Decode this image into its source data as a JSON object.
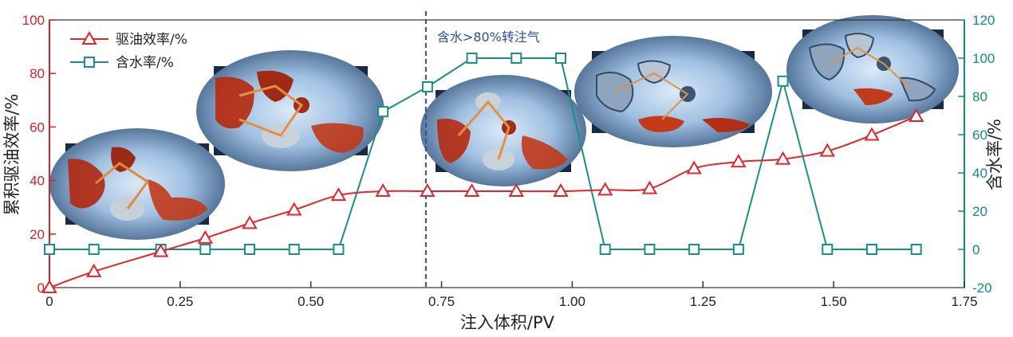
{
  "chart_data": {
    "type": "line",
    "xlabel": "注入体积/PV",
    "ylabel_left": "累积驱油效率/%",
    "ylabel_right": "含水率/%",
    "xlim": [
      0,
      1.75
    ],
    "ylim_left": [
      0,
      100
    ],
    "ylim_right": [
      -20,
      120
    ],
    "x_ticks": [
      "0",
      "0.25",
      "0.50",
      "0.75",
      "1.00",
      "1.25",
      "1.50",
      "1.75"
    ],
    "x_tick_values": [
      0,
      0.25,
      0.5,
      0.75,
      1.0,
      1.25,
      1.5,
      1.75
    ],
    "y_left_ticks": [
      "0",
      "20",
      "40",
      "60",
      "80",
      "100"
    ],
    "y_left_tick_values": [
      0,
      20,
      40,
      60,
      80,
      100
    ],
    "y_right_ticks": [
      "-20",
      "0",
      "20",
      "40",
      "60",
      "80",
      "100",
      "120"
    ],
    "y_right_tick_values": [
      -20,
      0,
      20,
      40,
      60,
      80,
      100,
      120
    ],
    "legend_position": "top-left",
    "grid": false,
    "series": [
      {
        "name": "驱油效率/%",
        "axis": "left",
        "marker": "triangle",
        "color": "#e0262d",
        "x": [
          0,
          0.085,
          0.213,
          0.298,
          0.383,
          0.468,
          0.553,
          0.638,
          0.723,
          0.808,
          0.893,
          0.978,
          1.063,
          1.148,
          1.233,
          1.318,
          1.403,
          1.488,
          1.573,
          1.658
        ],
        "values": [
          0,
          6.0,
          13.5,
          18.5,
          24.0,
          29.0,
          34.5,
          36.0,
          36.0,
          36.0,
          36.0,
          36.0,
          36.5,
          37.0,
          44.5,
          47.0,
          48.0,
          51.0,
          57.0,
          64.0
        ]
      },
      {
        "name": "含水率/%",
        "axis": "right",
        "marker": "square",
        "color": "#1a8e88",
        "x": [
          0,
          0.085,
          0.213,
          0.298,
          0.383,
          0.468,
          0.553,
          0.638,
          0.723,
          0.808,
          0.893,
          0.978,
          1.063,
          1.148,
          1.233,
          1.318,
          1.403,
          1.488,
          1.573,
          1.658
        ],
        "values": [
          0,
          0,
          0,
          0,
          0,
          0,
          0,
          72,
          85,
          100,
          100,
          100,
          0,
          0,
          0,
          0,
          88,
          0,
          0,
          0
        ]
      }
    ],
    "annotations": [
      {
        "text": "含水>80%转注气",
        "x": 0.72
      }
    ]
  },
  "colors": {
    "oil": "#e0262d",
    "water": "#1a8e88",
    "annotation": "#2c4e9c"
  }
}
